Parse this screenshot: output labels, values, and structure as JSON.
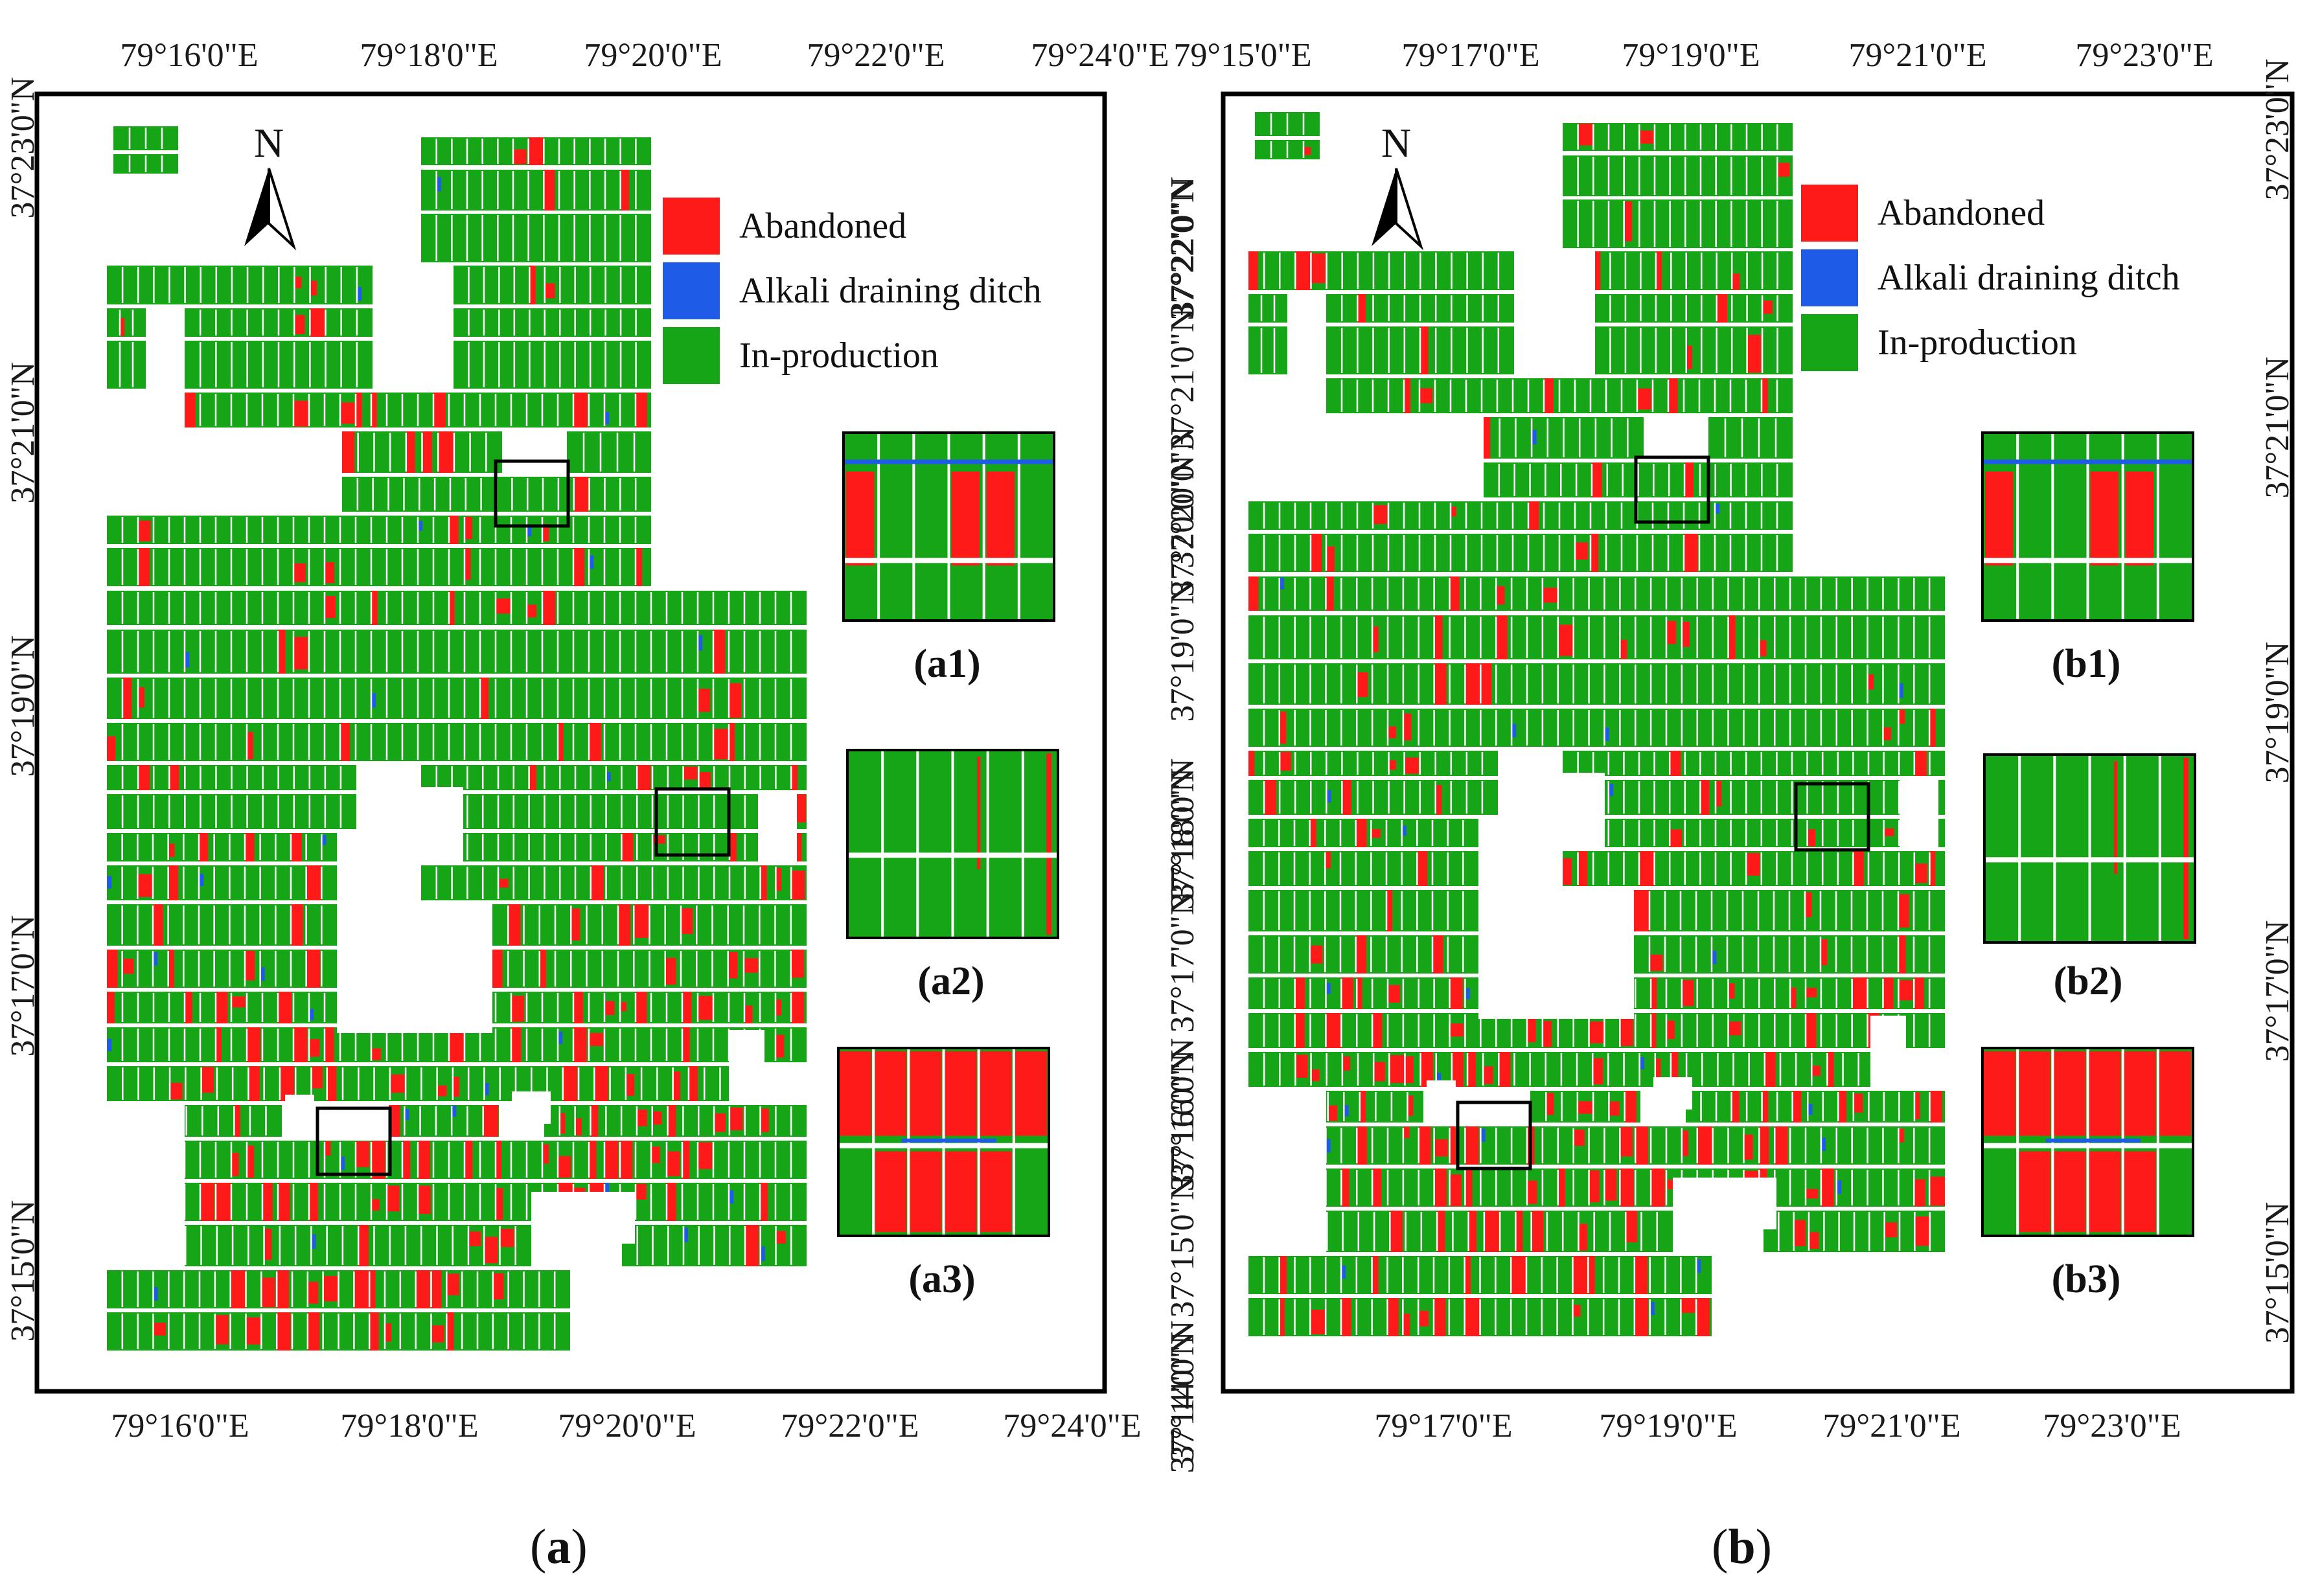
{
  "colors": {
    "abandoned": "#ff1a1a",
    "ditch": "#1e5be6",
    "production": "#16a516",
    "frame": "#000000"
  },
  "legend": [
    {
      "key": "abandoned",
      "label": "Abandoned"
    },
    {
      "key": "ditch",
      "label": "Alkali draining ditch"
    },
    {
      "key": "production",
      "label": "In-production"
    }
  ],
  "north_label": "N",
  "panels": [
    {
      "id": "a",
      "caption_open": "(",
      "caption_letter": "a",
      "caption_close": ")",
      "top_ticks": [
        "79°16'0\"E",
        "79°18'0\"E",
        "79°20'0\"E",
        "79°22'0\"E",
        "79°24'0\"E"
      ],
      "bottom_ticks": [
        "79°16'0\"E",
        "79°18'0\"E",
        "79°20'0\"E",
        "79°22'0\"E",
        "79°24'0\"E"
      ],
      "left_ticks": [
        "37°23'0\"N",
        "37°21'0\"N",
        "37°19'0\"N",
        "37°17'0\"N",
        "37°15'0\"N"
      ],
      "right_ticks": [
        "37°22'0\"N",
        "37°20'0\"N",
        "37°18'0\"N",
        "37°16'0\"N",
        "37°14'0\"N"
      ],
      "insets": [
        "(a1)",
        "(a2)",
        "(a3)"
      ]
    },
    {
      "id": "b",
      "caption_open": "(",
      "caption_letter": "b",
      "caption_close": ")",
      "top_ticks": [
        "79°15'0\"E",
        "79°17'0\"E",
        "79°19'0\"E",
        "79°21'0\"E",
        "79°23'0\"E"
      ],
      "bottom_ticks": [
        "79°17'0\"E",
        "79°19'0\"E",
        "79°21'0\"E",
        "79°23'0\"E"
      ],
      "left_ticks": [
        "37°22'0\"N",
        "37°21'0\"N",
        "37°20'0\"N",
        "37°19'0\"N",
        "37°18'0\"N",
        "37°17'0\"N",
        "37°16'0\"N",
        "37°15'0\"N",
        "37°14'0\"N"
      ],
      "right_ticks": [
        "37°23'0\"N",
        "37°21'0\"N",
        "37°19'0\"N",
        "37°17'0\"N",
        "37°15'0\"N"
      ],
      "insets": [
        "(b1)",
        "(b2)",
        "(b3)"
      ]
    }
  ]
}
